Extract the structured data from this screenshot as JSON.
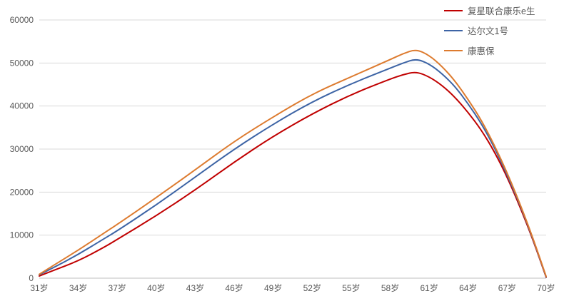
{
  "chart_data": {
    "type": "line",
    "title": "",
    "xlabel": "",
    "ylabel": "",
    "grid": true,
    "legend_position": "top-right",
    "ylim": [
      0,
      60000
    ],
    "y_ticks": [
      0,
      10000,
      20000,
      30000,
      40000,
      50000,
      60000
    ],
    "y_tick_labels": [
      "0",
      "10000",
      "20000",
      "30000",
      "40000",
      "50000",
      "60000"
    ],
    "x_unit": "age",
    "x_tick_ages": [
      31,
      34,
      37,
      40,
      43,
      46,
      49,
      52,
      55,
      58,
      61,
      64,
      67,
      70
    ],
    "x_tick_labels": [
      "31岁",
      "34岁",
      "37岁",
      "40岁",
      "43岁",
      "46岁",
      "49岁",
      "52岁",
      "55岁",
      "58岁",
      "61岁",
      "64岁",
      "67岁",
      "70岁"
    ],
    "x": [
      31,
      32,
      34,
      36,
      37,
      40,
      43,
      46,
      49,
      52,
      55,
      58,
      59,
      60,
      61,
      62,
      63,
      64,
      65,
      66,
      67,
      68,
      69,
      70
    ],
    "series": [
      {
        "name": "复星联合康乐e生",
        "color": "#c00000",
        "values": [
          500,
          1700,
          4000,
          7200,
          9000,
          14500,
          20500,
          27000,
          33000,
          38200,
          42700,
          46300,
          47300,
          48000,
          46800,
          44800,
          42000,
          38500,
          34500,
          29500,
          23500,
          16500,
          8800,
          200
        ]
      },
      {
        "name": "达尔文1号",
        "color": "#3d64a5",
        "values": [
          800,
          2300,
          5500,
          9200,
          11000,
          17000,
          23500,
          30000,
          35800,
          41000,
          45200,
          48800,
          50000,
          51000,
          49800,
          47500,
          44500,
          40500,
          36000,
          30500,
          24000,
          17000,
          9000,
          300
        ]
      },
      {
        "name": "康惠保",
        "color": "#dd7b2f",
        "values": [
          900,
          2800,
          6500,
          10500,
          12500,
          18700,
          25200,
          31800,
          37500,
          42800,
          46800,
          50800,
          52200,
          53200,
          51800,
          49200,
          45800,
          41500,
          36800,
          31000,
          24500,
          17200,
          9200,
          400
        ]
      }
    ],
    "style": {
      "grid_color": "#d9d9d9",
      "axis_line_color": "#bfbfbf",
      "tick_label_color": "#595959",
      "background": "#ffffff",
      "line_width": 2
    }
  }
}
